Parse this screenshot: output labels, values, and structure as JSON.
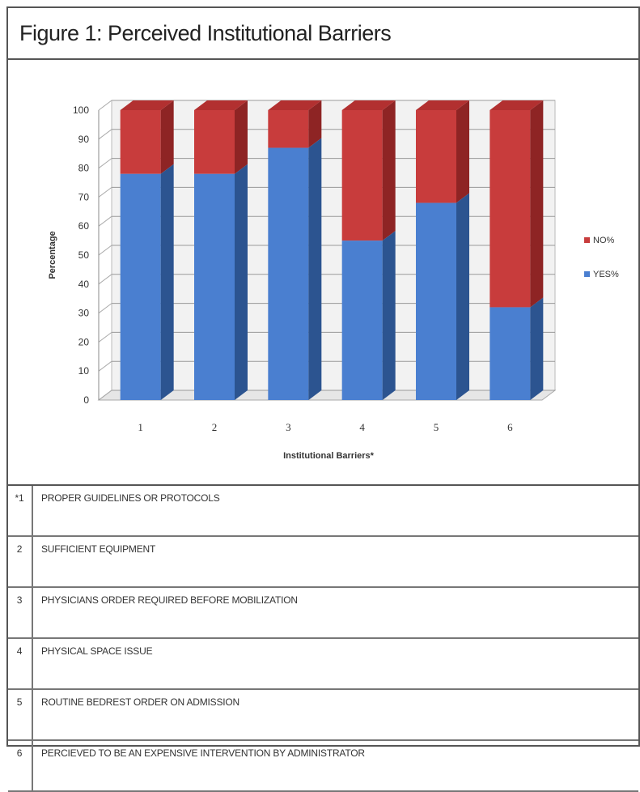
{
  "figure_title": "Figure 1: Perceived Institutional Barriers",
  "colors": {
    "yes_front": "#4a7fd0",
    "yes_side": "#2c5490",
    "yes_top": "#5a8cda",
    "no_front": "#c83c3c",
    "no_side": "#8e2424",
    "no_top": "#b23030"
  },
  "chart_data": {
    "type": "bar",
    "stacked": true,
    "three_d": true,
    "categories": [
      "1",
      "2",
      "3",
      "4",
      "5",
      "6"
    ],
    "series": [
      {
        "name": "YES%",
        "values": [
          78,
          78,
          87,
          55,
          68,
          32
        ]
      },
      {
        "name": "NO%",
        "values": [
          22,
          22,
          13,
          45,
          32,
          68
        ]
      }
    ],
    "ylim": [
      0,
      100
    ],
    "yticks": [
      "0",
      "10",
      "20",
      "30",
      "40",
      "50",
      "60",
      "70",
      "80",
      "90",
      "100"
    ],
    "ylabel": "Percentage",
    "xlabel": "Institutional Barriers*",
    "grid": true,
    "legend_position": "right"
  },
  "legend_rows": [
    {
      "num": "*1",
      "text": "PROPER GUIDELINES OR PROTOCOLS"
    },
    {
      "num": "2",
      "text": "SUFFICIENT EQUIPMENT"
    },
    {
      "num": "3",
      "text": "PHYSICIANS ORDER REQUIRED BEFORE MOBILIZATION"
    },
    {
      "num": "4",
      "text": "PHYSICAL SPACE ISSUE"
    },
    {
      "num": "5",
      "text": "ROUTINE BEDREST ORDER ON ADMISSION"
    },
    {
      "num": "6",
      "text": "PERCIEVED TO BE AN EXPENSIVE INTERVENTION BY ADMINISTRATOR"
    }
  ]
}
